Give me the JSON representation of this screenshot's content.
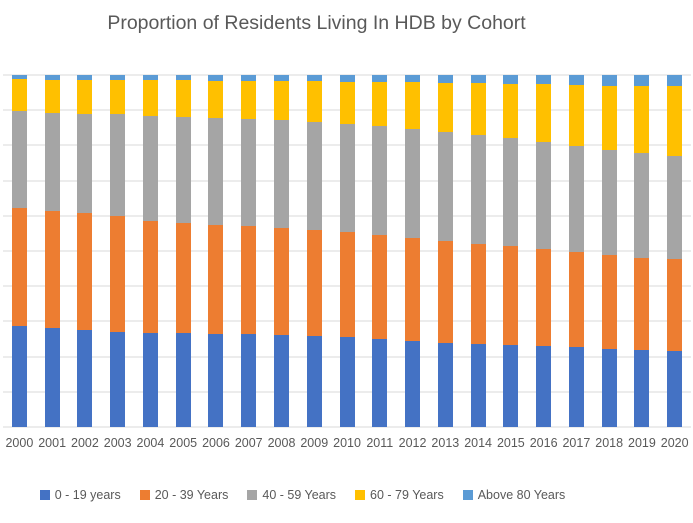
{
  "chart": {
    "title": "Proportion of Residents Living In HDB by Cohort"
  },
  "chart_data": {
    "type": "bar",
    "subtype": "stacked-100-percent-column",
    "title": "Proportion of Residents Living In HDB by Cohort",
    "xlabel": "",
    "ylabel": "",
    "ylim": [
      0,
      100
    ],
    "y_axis_labels_visible": false,
    "gridlines": {
      "orientation": "horizontal",
      "interval_percent": 10,
      "color": "#D9D9D9"
    },
    "legend_position": "bottom",
    "text_color": "#595959",
    "background_color": "#FFFFFF",
    "categories": [
      "2000",
      "2001",
      "2002",
      "2003",
      "2004",
      "2005",
      "2006",
      "2007",
      "2008",
      "2009",
      "2010",
      "2011",
      "2012",
      "2013",
      "2014",
      "2015",
      "2016",
      "2017",
      "2018",
      "2019",
      "2020"
    ],
    "series": [
      {
        "name": "0 - 19 years",
        "color": "#4472C4",
        "values": [
          28.7,
          28.1,
          27.5,
          26.9,
          26.8,
          26.7,
          26.5,
          26.3,
          26.0,
          25.8,
          25.5,
          24.9,
          24.3,
          23.8,
          23.5,
          23.2,
          23.0,
          22.8,
          22.3,
          21.9,
          21.5
        ]
      },
      {
        "name": "20 - 39 Years",
        "color": "#ED7D31",
        "values": [
          33.4,
          33.3,
          33.2,
          33.1,
          31.6,
          31.3,
          31.0,
          30.7,
          30.4,
          30.1,
          29.8,
          29.6,
          29.3,
          29.0,
          28.6,
          28.1,
          27.5,
          26.9,
          26.5,
          26.2,
          26.1
        ]
      },
      {
        "name": "40 - 59 Years",
        "color": "#A5A5A5",
        "values": [
          27.7,
          27.9,
          28.3,
          29.0,
          30.0,
          30.1,
          30.3,
          30.5,
          30.7,
          30.8,
          30.9,
          31.0,
          31.1,
          31.1,
          30.9,
          30.7,
          30.4,
          30.2,
          30.0,
          29.7,
          29.5
        ]
      },
      {
        "name": "60 - 79 Years",
        "color": "#FFC000",
        "values": [
          9.0,
          9.4,
          9.6,
          9.7,
          10.1,
          10.4,
          10.6,
          10.8,
          11.1,
          11.5,
          11.9,
          12.5,
          13.2,
          13.9,
          14.7,
          15.5,
          16.5,
          17.3,
          18.2,
          19.1,
          19.8
        ]
      },
      {
        "name": "Above 80 Years",
        "color": "#5B9BD5",
        "values": [
          1.2,
          1.3,
          1.4,
          1.3,
          1.5,
          1.5,
          1.6,
          1.7,
          1.8,
          1.8,
          1.9,
          2.0,
          2.1,
          2.2,
          2.3,
          2.5,
          2.6,
          2.8,
          3.0,
          3.1,
          3.1
        ]
      }
    ]
  }
}
